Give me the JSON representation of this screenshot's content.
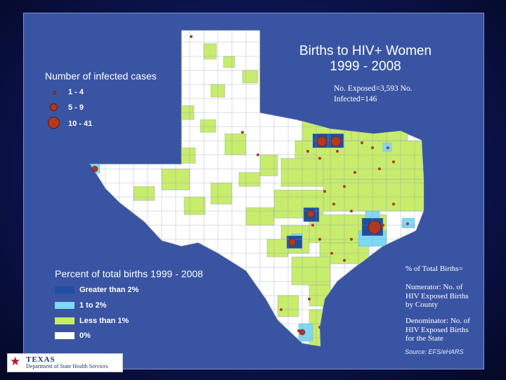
{
  "map": {
    "title_line1": "Births to HIV+ Women",
    "title_line2": "1999 - 2008",
    "stats": "No. Exposed=3,593   No. Infected=146",
    "cases_legend": {
      "title": "Number of infected cases",
      "items": [
        "1 - 4",
        "5 - 9",
        "10 - 41"
      ]
    },
    "percent_legend": {
      "title": "Percent of total births 1999 - 2008",
      "items": [
        "Greater than 2%",
        "1 to 2%",
        "Less than 1%",
        "0%"
      ],
      "colors": [
        "#1f4fa0",
        "#7fd8f4",
        "#c8ec6c",
        "#ffffff"
      ]
    },
    "note_heading": "% of Total Births=",
    "note_numerator": "Numerator: No. of HIV Exposed Births by County",
    "note_denominator": "Denominator: No. of HIV Exposed Births for the State",
    "source": "Source: EFS/eHARS",
    "logo_line1": "TEXAS",
    "logo_line2": "Department of State Health Services",
    "colors": {
      "background": "#0c1450",
      "panel": "#3954a3",
      "state_fill": "#ffffff",
      "low_fill": "#c8ec6c",
      "mid_fill": "#7fd8f4",
      "high_fill": "#1f4fa0",
      "dot": "#b4381d"
    }
  }
}
